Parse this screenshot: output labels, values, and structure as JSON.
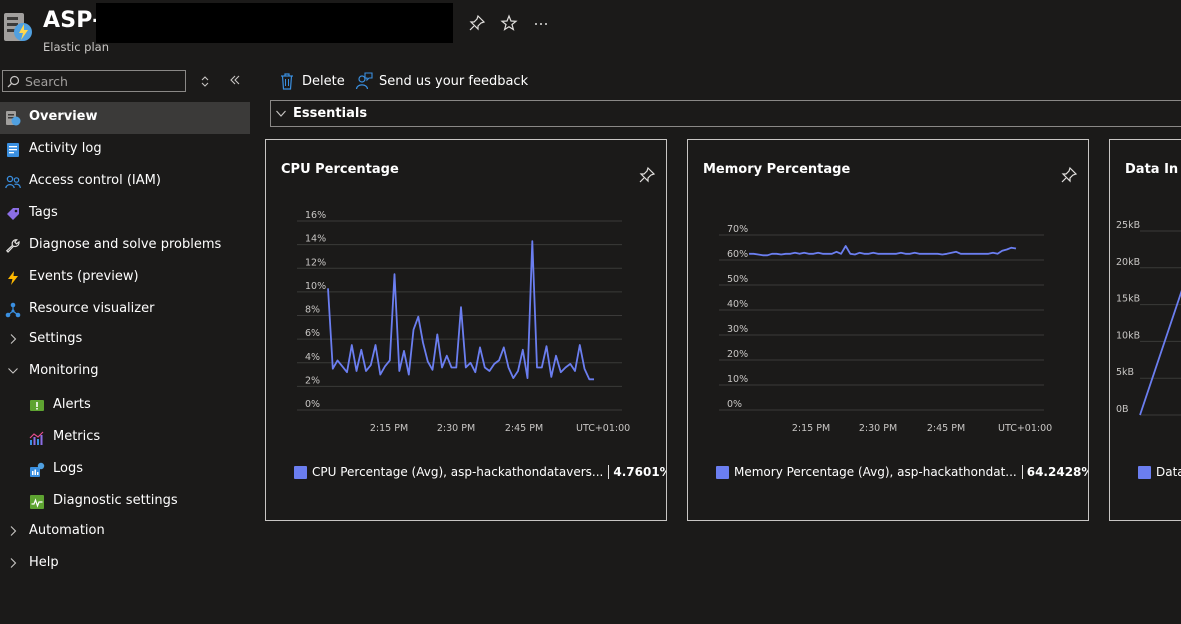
{
  "header": {
    "title": "ASP-",
    "subtitle": "Elastic plan"
  },
  "sidebar": {
    "search_placeholder": "Search",
    "items": [
      {
        "label": "Overview",
        "icon": "app-service-plan-icon",
        "active": true
      },
      {
        "label": "Activity log",
        "icon": "activity-log-icon"
      },
      {
        "label": "Access control (IAM)",
        "icon": "people-icon"
      },
      {
        "label": "Tags",
        "icon": "tag-icon"
      },
      {
        "label": "Diagnose and solve problems",
        "icon": "wrench-icon"
      },
      {
        "label": "Events (preview)",
        "icon": "lightning-icon"
      },
      {
        "label": "Resource visualizer",
        "icon": "hierarchy-icon"
      },
      {
        "label": "Settings",
        "icon": "chevron-right-icon"
      },
      {
        "label": "Monitoring",
        "icon": "chevron-down-icon"
      },
      {
        "label": "Alerts",
        "icon": "alert-icon"
      },
      {
        "label": "Metrics",
        "icon": "metrics-icon"
      },
      {
        "label": "Logs",
        "icon": "logs-icon"
      },
      {
        "label": "Diagnostic settings",
        "icon": "diagnostic-settings-icon"
      },
      {
        "label": "Automation",
        "icon": "chevron-right-icon"
      },
      {
        "label": "Help",
        "icon": "chevron-right-icon"
      }
    ]
  },
  "toolbar": {
    "delete_label": "Delete",
    "feedback_label": "Send us your feedback"
  },
  "essentials": {
    "label": "Essentials"
  },
  "colors": {
    "series": "#6b7ef0",
    "background": "#1b1a19",
    "accent": "#0078d4"
  },
  "chart_data": [
    {
      "type": "line",
      "title": "CPU Percentage",
      "y_ticks": [
        "16%",
        "14%",
        "12%",
        "10%",
        "8%",
        "6%",
        "4%",
        "2%",
        "0%"
      ],
      "ylim": [
        0,
        16
      ],
      "x_ticks": [
        "2:15 PM",
        "2:30 PM",
        "2:45 PM"
      ],
      "timezone": "UTC+01:00",
      "series": [
        {
          "name": "CPU Percentage (Avg), asp-hackathondatavers...",
          "values": [
            10.3,
            3.5,
            4.2,
            3.7,
            3.2,
            5.5,
            3.3,
            5.1,
            3.3,
            3.8,
            5.5,
            3.0,
            3.7,
            4.2,
            11.5,
            3.3,
            5.0,
            3.0,
            6.8,
            7.9,
            5.7,
            4.1,
            3.4,
            6.4,
            3.6,
            4.6,
            3.6,
            3.6,
            8.7,
            3.6,
            4.0,
            3.2,
            5.3,
            3.6,
            3.3,
            3.9,
            4.2,
            5.3,
            3.6,
            2.7,
            3.3,
            5.1,
            2.7,
            14.3,
            3.6,
            3.6,
            5.4,
            2.8,
            4.6,
            3.2,
            3.6,
            3.9,
            3.3,
            5.5,
            3.5,
            2.6,
            2.6
          ]
        }
      ],
      "legend_value": "4.7601%"
    },
    {
      "type": "line",
      "title": "Memory Percentage",
      "y_ticks": [
        "70%",
        "60%",
        "50%",
        "40%",
        "30%",
        "20%",
        "10%",
        "0%"
      ],
      "ylim": [
        0,
        70
      ],
      "x_ticks": [
        "2:15 PM",
        "2:30 PM",
        "2:45 PM"
      ],
      "timezone": "UTC+01:00",
      "series": [
        {
          "name": "Memory Percentage (Avg), asp-hackathondat...",
          "values": [
            62.5,
            62.5,
            62.2,
            61.9,
            61.9,
            62.5,
            62.5,
            62.2,
            62.5,
            62.5,
            62.9,
            62.5,
            62.9,
            62.5,
            62.5,
            62.9,
            62.5,
            62.5,
            62.5,
            63.3,
            62.5,
            65.6,
            62.5,
            62.2,
            62.9,
            62.5,
            62.5,
            62.9,
            62.5,
            62.5,
            62.5,
            62.5,
            62.5,
            62.9,
            62.5,
            62.5,
            62.9,
            62.5,
            62.5,
            62.5,
            62.5,
            62.5,
            62.2,
            62.5,
            62.9,
            63.3,
            62.5,
            62.5,
            62.5,
            62.5,
            62.5,
            62.5,
            62.5,
            62.9,
            62.5,
            63.7,
            64.2,
            64.9,
            64.6
          ]
        }
      ],
      "legend_value": "64.2428%"
    },
    {
      "type": "line",
      "title": "Data In",
      "y_ticks": [
        "25kB",
        "20kB",
        "15kB",
        "10kB",
        "5kB",
        "0B"
      ],
      "ylim": [
        0,
        25
      ],
      "series": [
        {
          "name": "Data",
          "values": [
            0,
            17
          ]
        }
      ]
    }
  ]
}
